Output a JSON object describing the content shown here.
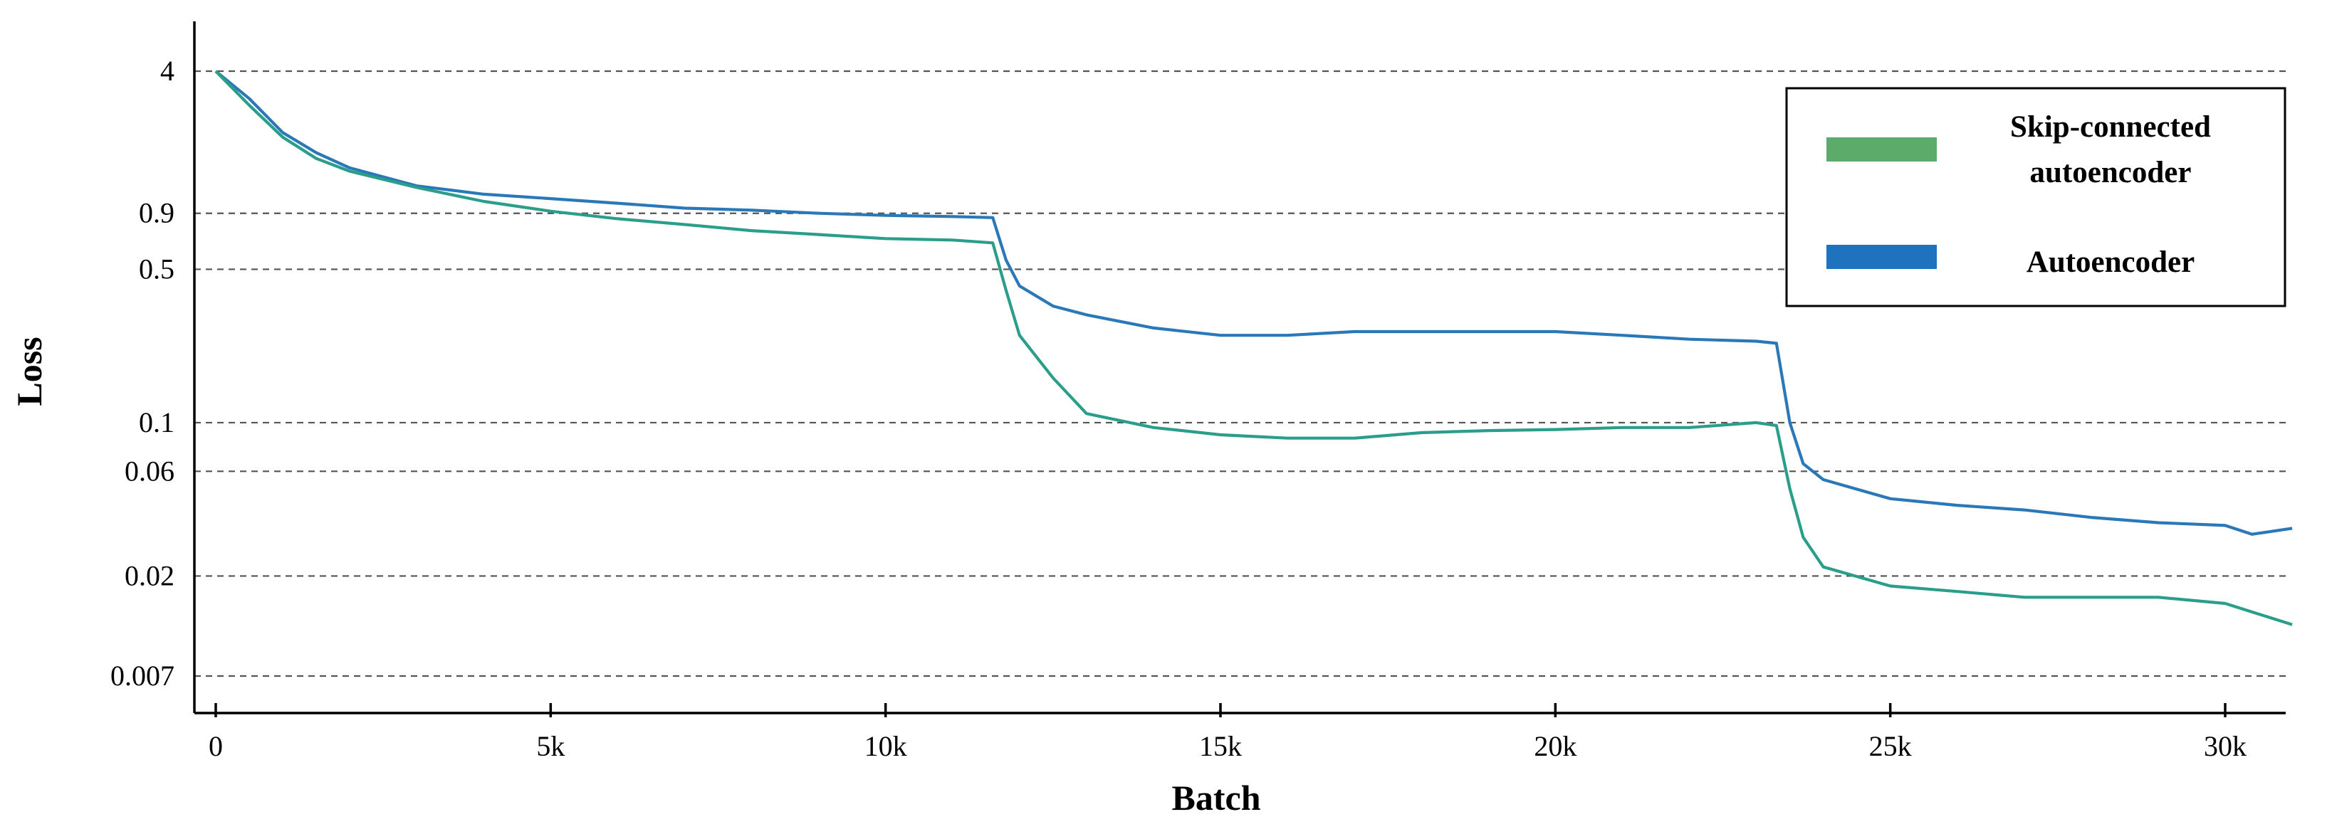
{
  "chart_data": {
    "type": "line",
    "xlabel": "Batch",
    "ylabel": "Loss",
    "xlim": [
      -250,
      31100
    ],
    "ylim": [
      0.005,
      5.2
    ],
    "y_scale": "log",
    "grid": "horizontal dashed",
    "legend_position": "top-right",
    "x_ticks": [
      {
        "value": 0,
        "label": "0"
      },
      {
        "value": 5000,
        "label": "5k"
      },
      {
        "value": 10000,
        "label": "10k"
      },
      {
        "value": 15000,
        "label": "15k"
      },
      {
        "value": 20000,
        "label": "20k"
      },
      {
        "value": 25000,
        "label": "25k"
      },
      {
        "value": 30000,
        "label": "30k"
      }
    ],
    "y_ticks": [
      {
        "value": 4,
        "label": "4"
      },
      {
        "value": 0.9,
        "label": "0.9"
      },
      {
        "value": 0.5,
        "label": "0.5"
      },
      {
        "value": 0.1,
        "label": "0.1"
      },
      {
        "value": 0.06,
        "label": "0.06"
      },
      {
        "value": 0.02,
        "label": "0.02"
      },
      {
        "value": 0.007,
        "label": "0.007"
      }
    ],
    "legend": [
      {
        "lines": [
          "Skip-connected",
          "autoencoder"
        ],
        "swatch_color": "#5cab6a"
      },
      {
        "lines": [
          "Autoencoder"
        ],
        "swatch_color": "#1f72bd"
      }
    ],
    "series": [
      {
        "name": "Autoencoder",
        "color": "#2b78b8",
        "x": [
          0,
          500,
          1000,
          1500,
          2000,
          3000,
          4000,
          5000,
          6000,
          7000,
          8000,
          9000,
          10000,
          11000,
          11600,
          11800,
          12000,
          12500,
          13000,
          14000,
          15000,
          16000,
          17000,
          18000,
          19000,
          20000,
          21000,
          22000,
          23000,
          23300,
          23500,
          23700,
          24000,
          25000,
          26000,
          27000,
          28000,
          29000,
          30000,
          30400,
          31000
        ],
        "y": [
          4.0,
          3.0,
          2.1,
          1.7,
          1.45,
          1.2,
          1.1,
          1.05,
          1.0,
          0.95,
          0.93,
          0.9,
          0.88,
          0.87,
          0.86,
          0.55,
          0.42,
          0.34,
          0.31,
          0.27,
          0.25,
          0.25,
          0.26,
          0.26,
          0.26,
          0.26,
          0.25,
          0.24,
          0.235,
          0.23,
          0.1,
          0.065,
          0.055,
          0.045,
          0.042,
          0.04,
          0.037,
          0.035,
          0.034,
          0.031,
          0.033
        ]
      },
      {
        "name": "Skip-connected autoencoder",
        "color": "#2a9e8a",
        "x": [
          0,
          500,
          1000,
          1500,
          2000,
          3000,
          4000,
          5000,
          6000,
          7000,
          8000,
          9000,
          10000,
          11000,
          11600,
          11800,
          12000,
          12500,
          13000,
          14000,
          15000,
          16000,
          17000,
          18000,
          19000,
          20000,
          21000,
          22000,
          23000,
          23300,
          23500,
          23700,
          24000,
          25000,
          26000,
          27000,
          28000,
          29000,
          30000,
          31000
        ],
        "y": [
          4.0,
          2.8,
          2.0,
          1.6,
          1.4,
          1.18,
          1.02,
          0.92,
          0.85,
          0.8,
          0.75,
          0.72,
          0.69,
          0.68,
          0.66,
          0.4,
          0.25,
          0.16,
          0.11,
          0.095,
          0.088,
          0.085,
          0.085,
          0.09,
          0.092,
          0.093,
          0.095,
          0.095,
          0.1,
          0.097,
          0.05,
          0.03,
          0.022,
          0.018,
          0.017,
          0.016,
          0.016,
          0.016,
          0.015,
          0.012
        ]
      }
    ]
  }
}
